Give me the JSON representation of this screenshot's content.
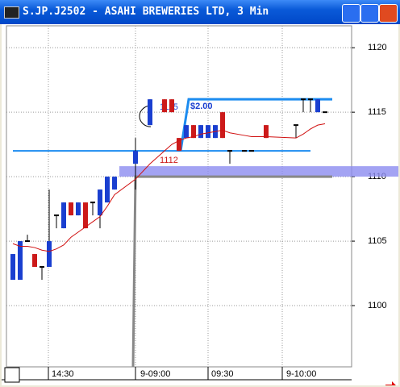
{
  "window": {
    "title": "S.JP.J2502 - ASAHI BREWERIES LTD, 3 Min"
  },
  "chart_data": {
    "type": "candlestick",
    "up_color": "#1a3fd0",
    "down_color": "#cc1a1a",
    "doji_color": "#000000",
    "open": [
      1102,
      1102,
      1105,
      1104,
      1103,
      1103,
      1107,
      1106,
      1108,
      1107,
      1108,
      1108,
      1107,
      1108,
      1109,
      1111,
      1114,
      1116,
      1116,
      1113,
      1113,
      1114,
      1113,
      1113,
      1113,
      1115,
      1112,
      1112,
      1112,
      1114,
      1114,
      1116,
      1116,
      1115,
      1115
    ],
    "high": [
      1104,
      1105,
      1105.5,
      1104,
      1103,
      1109,
      1107,
      1108,
      1108,
      1108,
      1108,
      1108,
      1109,
      1110,
      1110,
      1113,
      1116,
      1116,
      1116,
      1113,
      1114,
      1114,
      1114,
      1114,
      1114,
      1115,
      1112,
      1112,
      1112,
      1114,
      1114,
      1116,
      1116,
      1116,
      1115
    ],
    "low": [
      1102,
      1102,
      1105,
      1103,
      1102,
      1103,
      1106,
      1106,
      1107,
      1107,
      1106,
      1107,
      1106,
      1108,
      1109,
      1109,
      1114,
      1115,
      1115,
      1112,
      1113,
      1113,
      1113,
      1113,
      1113,
      1113,
      1111,
      1112,
      1112,
      1113,
      1113,
      1115,
      1115,
      1115,
      1115
    ],
    "close": [
      1104,
      1105,
      1105,
      1103,
      1103,
      1105,
      1107,
      1108,
      1107,
      1108,
      1106,
      1108,
      1109,
      1110,
      1110,
      1112,
      1116,
      1115,
      1115,
      1112,
      1114,
      1113,
      1114,
      1114,
      1114,
      1113,
      1112,
      1112,
      1112,
      1113,
      1114,
      1116,
      1116,
      1116,
      1115
    ],
    "moving_average": {
      "color": "#d01010",
      "values": [
        1104.8,
        1104.6,
        1104.6,
        1104.5,
        1104.3,
        1104.2,
        1104.4,
        1104.7,
        1105.3,
        1105.7,
        1106.1,
        1106.5,
        1106.9,
        1107.7,
        1108.6,
        1109.8,
        1111,
        1112,
        1112.5,
        1112.8,
        1113,
        1113.1,
        1113.3,
        1113.4,
        1113.5,
        1113.6,
        1113.4,
        1113.2,
        1113.1,
        1113.1,
        1113.0,
        1113.3,
        1113.7,
        1114.0,
        1114.1
      ]
    },
    "ylim": [
      1095.25,
      1121.7
    ],
    "yticks": [
      1100,
      1105,
      1110,
      1115,
      1120
    ],
    "x_labels": [
      "14:30",
      "9-09:00",
      "09:30",
      "9-10:00"
    ],
    "levels": {
      "entry": 1112,
      "target": 1116,
      "stop": 1110
    },
    "annotations": [
      "1115",
      "1112",
      "$2.00"
    ],
    "grid": true
  }
}
